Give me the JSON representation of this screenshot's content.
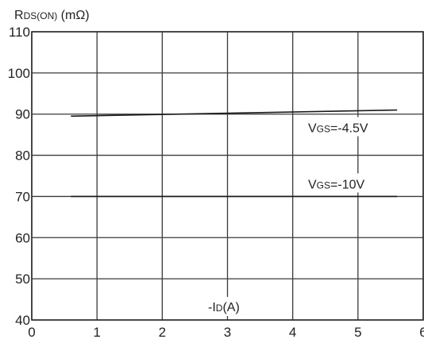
{
  "chart_data": {
    "type": "line",
    "ylabel": {
      "main": "R",
      "sub": "DS(ON)",
      "unit": " (mΩ)"
    },
    "xlabel": {
      "prefix": "-I",
      "sub": "D",
      "unit": "(A)"
    },
    "xlim": [
      0,
      6
    ],
    "ylim": [
      40,
      110
    ],
    "x_ticks": [
      "0",
      "1",
      "2",
      "3",
      "4",
      "5",
      "6"
    ],
    "y_ticks": [
      "40",
      "50",
      "60",
      "70",
      "80",
      "90",
      "100",
      "110"
    ],
    "grid": true,
    "series": [
      {
        "name": "VGS=-4.5V",
        "label_main": "V",
        "label_sub": "GS",
        "label_rest": "=-4.5V",
        "x": [
          0.6,
          5.6
        ],
        "y": [
          89.5,
          91.0
        ]
      },
      {
        "name": "VGS=-10V",
        "label_main": "V",
        "label_sub": "GS",
        "label_rest": "=-10V",
        "x": [
          0.6,
          5.6
        ],
        "y": [
          70.0,
          70.0
        ]
      }
    ]
  }
}
